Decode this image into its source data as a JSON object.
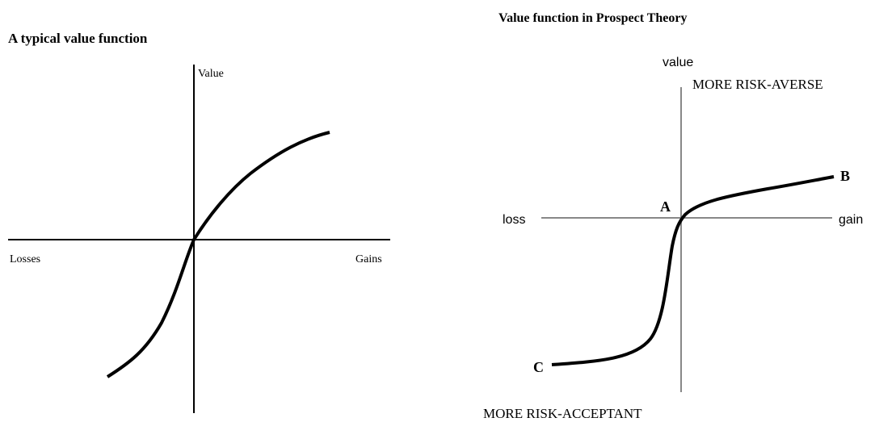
{
  "left": {
    "title": "A typical value function",
    "y_label": "Value",
    "x_left": "Losses",
    "x_right": "Gains"
  },
  "right": {
    "title": "Value function in Prospect Theory",
    "y_label": "value",
    "top_label": "MORE RISK-AVERSE",
    "bottom_label": "MORE RISK-ACCEPTANT",
    "x_left": "loss",
    "x_right": "gain",
    "point_a": "A",
    "point_b": "B",
    "point_c": "C"
  }
}
